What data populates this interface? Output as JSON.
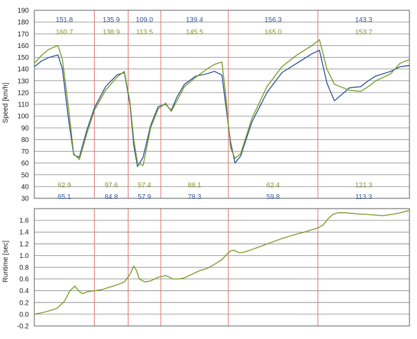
{
  "colors": {
    "blue": "#2f5597",
    "green": "#7a9a2c",
    "divider": "#e07070",
    "grid": "#7f7f7f",
    "frame": "#595959",
    "tick_text": "#1a1a1a"
  },
  "chart_data": [
    {
      "type": "line",
      "ylabel": "Speed [km/h]",
      "xlim": [
        0,
        100
      ],
      "ylim": [
        30,
        190
      ],
      "yticks": [
        30,
        40,
        50,
        60,
        70,
        80,
        90,
        100,
        110,
        120,
        130,
        140,
        150,
        160,
        170,
        180,
        190
      ],
      "grid": true,
      "section_dividers": [
        16,
        25,
        33.7,
        51.7,
        75.6
      ],
      "series": [
        {
          "color": "blue",
          "x": [
            0,
            2,
            4,
            6.3,
            7.5,
            9,
            10.5,
            12,
            14,
            16,
            19,
            22,
            24,
            25.5,
            26.5,
            27.5,
            29,
            31,
            33,
            35,
            36.5,
            38,
            40,
            43,
            46,
            48,
            50,
            51,
            52.3,
            53.5,
            55,
            58,
            62,
            66,
            70,
            74,
            76,
            78,
            80,
            84,
            87,
            89,
            91,
            95,
            97.5,
            100
          ],
          "y": [
            142,
            147,
            150,
            152,
            140,
            100,
            67,
            65,
            88,
            107,
            125,
            135,
            137,
            110,
            75,
            57,
            65,
            92,
            108,
            110,
            105,
            116,
            127,
            134,
            136,
            138,
            135,
            110,
            78,
            60,
            66,
            95,
            120,
            137,
            145,
            153,
            156,
            128,
            113,
            124,
            125,
            130,
            134,
            138,
            142,
            143
          ]
        },
        {
          "color": "green",
          "x": [
            0,
            2,
            4,
            6.3,
            7.5,
            9,
            10.5,
            12,
            14,
            16,
            19,
            22,
            24,
            25.5,
            26.5,
            27.5,
            29,
            31,
            33,
            35,
            36.5,
            38,
            40,
            43,
            46,
            48,
            50,
            51,
            52.3,
            53.5,
            55,
            58,
            62,
            66,
            70,
            74,
            76,
            78,
            80,
            84,
            87,
            89,
            91,
            95,
            97.5,
            100
          ],
          "y": [
            145,
            152,
            157,
            160,
            148,
            110,
            68,
            63,
            85,
            105,
            122,
            133,
            138,
            112,
            80,
            60,
            58,
            90,
            106,
            111,
            104,
            113,
            125,
            133,
            140,
            144,
            146,
            118,
            73,
            64,
            68,
            98,
            125,
            142,
            152,
            160,
            165,
            140,
            127,
            122,
            121,
            125,
            130,
            136,
            145,
            148
          ]
        }
      ],
      "section_labels": [
        {
          "x": 8,
          "max_blue": "151.8",
          "max_green": "160.7",
          "min_green": "62.9",
          "min_blue": "65.1"
        },
        {
          "x": 20.5,
          "max_blue": "135.9",
          "max_green": "138.9",
          "min_green": "97.6",
          "min_blue": "84.8"
        },
        {
          "x": 29.35,
          "max_blue": "109.0",
          "max_green": "113.5",
          "min_green": "57.4",
          "min_blue": "57.9"
        },
        {
          "x": 42.7,
          "max_blue": "139.4",
          "max_green": "145.5",
          "min_green": "88.1",
          "min_blue": "78.3"
        },
        {
          "x": 63.65,
          "max_blue": "156.3",
          "max_green": "165.0",
          "min_green": "62.4",
          "min_blue": "59.8"
        },
        {
          "x": 87.8,
          "max_blue": "143.3",
          "max_green": "153.7",
          "min_green": "121.3",
          "min_blue": "113.3"
        }
      ]
    },
    {
      "type": "line",
      "ylabel": "Runtime [sec]",
      "xlim": [
        0,
        100
      ],
      "ylim": [
        -0.2,
        1.8
      ],
      "yticks": [
        -0.2,
        0.0,
        0.2,
        0.4,
        0.6,
        0.8,
        1.0,
        1.2,
        1.4,
        1.6
      ],
      "grid": true,
      "section_dividers": [
        16,
        25,
        33.7,
        51.7,
        75.6
      ],
      "series": [
        {
          "color": "green",
          "x": [
            0,
            3,
            6,
            8,
            9.5,
            10.8,
            11.8,
            12.8,
            14,
            16,
            18,
            20,
            22,
            24,
            25.5,
            26.5,
            27.2,
            28,
            29.5,
            31,
            33,
            35,
            37,
            38.5,
            40,
            42,
            44,
            46,
            48,
            50,
            51.3,
            52.3,
            53.3,
            54.5,
            55.5,
            57,
            60,
            63,
            66,
            69,
            72,
            74,
            75.6,
            77,
            78.2,
            79.5,
            81,
            83,
            86,
            89,
            91,
            93,
            95,
            97,
            100
          ],
          "y": [
            0.0,
            0.04,
            0.1,
            0.22,
            0.4,
            0.48,
            0.4,
            0.35,
            0.38,
            0.4,
            0.42,
            0.46,
            0.5,
            0.55,
            0.68,
            0.82,
            0.75,
            0.6,
            0.55,
            0.57,
            0.63,
            0.66,
            0.6,
            0.6,
            0.62,
            0.68,
            0.74,
            0.78,
            0.85,
            0.93,
            1.02,
            1.08,
            1.09,
            1.05,
            1.05,
            1.08,
            1.15,
            1.22,
            1.29,
            1.35,
            1.4,
            1.44,
            1.47,
            1.52,
            1.62,
            1.7,
            1.73,
            1.73,
            1.71,
            1.7,
            1.69,
            1.68,
            1.7,
            1.72,
            1.77
          ]
        }
      ]
    }
  ]
}
